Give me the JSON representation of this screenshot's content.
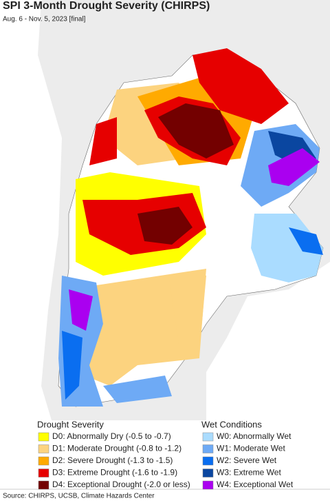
{
  "title": "SPI 3-Month Drought Severity (CHIRPS)",
  "subtitle": "Aug. 6 - Nov. 5, 2023 [final]",
  "legend": {
    "drought": {
      "title": "Drought Severity",
      "items": [
        {
          "label": "D0: Abnormally Dry (-0.5 to -0.7)",
          "color": "#ffff00"
        },
        {
          "label": "D1: Moderate Drought (-0.8 to -1.2)",
          "color": "#fcd37f"
        },
        {
          "label": "D2: Severe Drought (-1.3 to -1.5)",
          "color": "#ffaa00"
        },
        {
          "label": "D3: Extreme Drought (-1.6 to -1.9)",
          "color": "#e60000"
        },
        {
          "label": "D4: Exceptional Drought (-2.0 or less)",
          "color": "#730000"
        }
      ]
    },
    "wet": {
      "title": "Wet Conditions",
      "items": [
        {
          "label": "W0: Abnormally Wet",
          "color": "#aadcff"
        },
        {
          "label": "W1: Moderate Wet",
          "color": "#6eaaf5"
        },
        {
          "label": "W2: Severe Wet",
          "color": "#0a6ef0"
        },
        {
          "label": "W3: Extreme Wet",
          "color": "#0a46a0"
        },
        {
          "label": "W4: Exceptional Wet",
          "color": "#aa00f0"
        }
      ]
    }
  },
  "source": "Source: CHIRPS, UCSB, Climate Hazards Center"
}
